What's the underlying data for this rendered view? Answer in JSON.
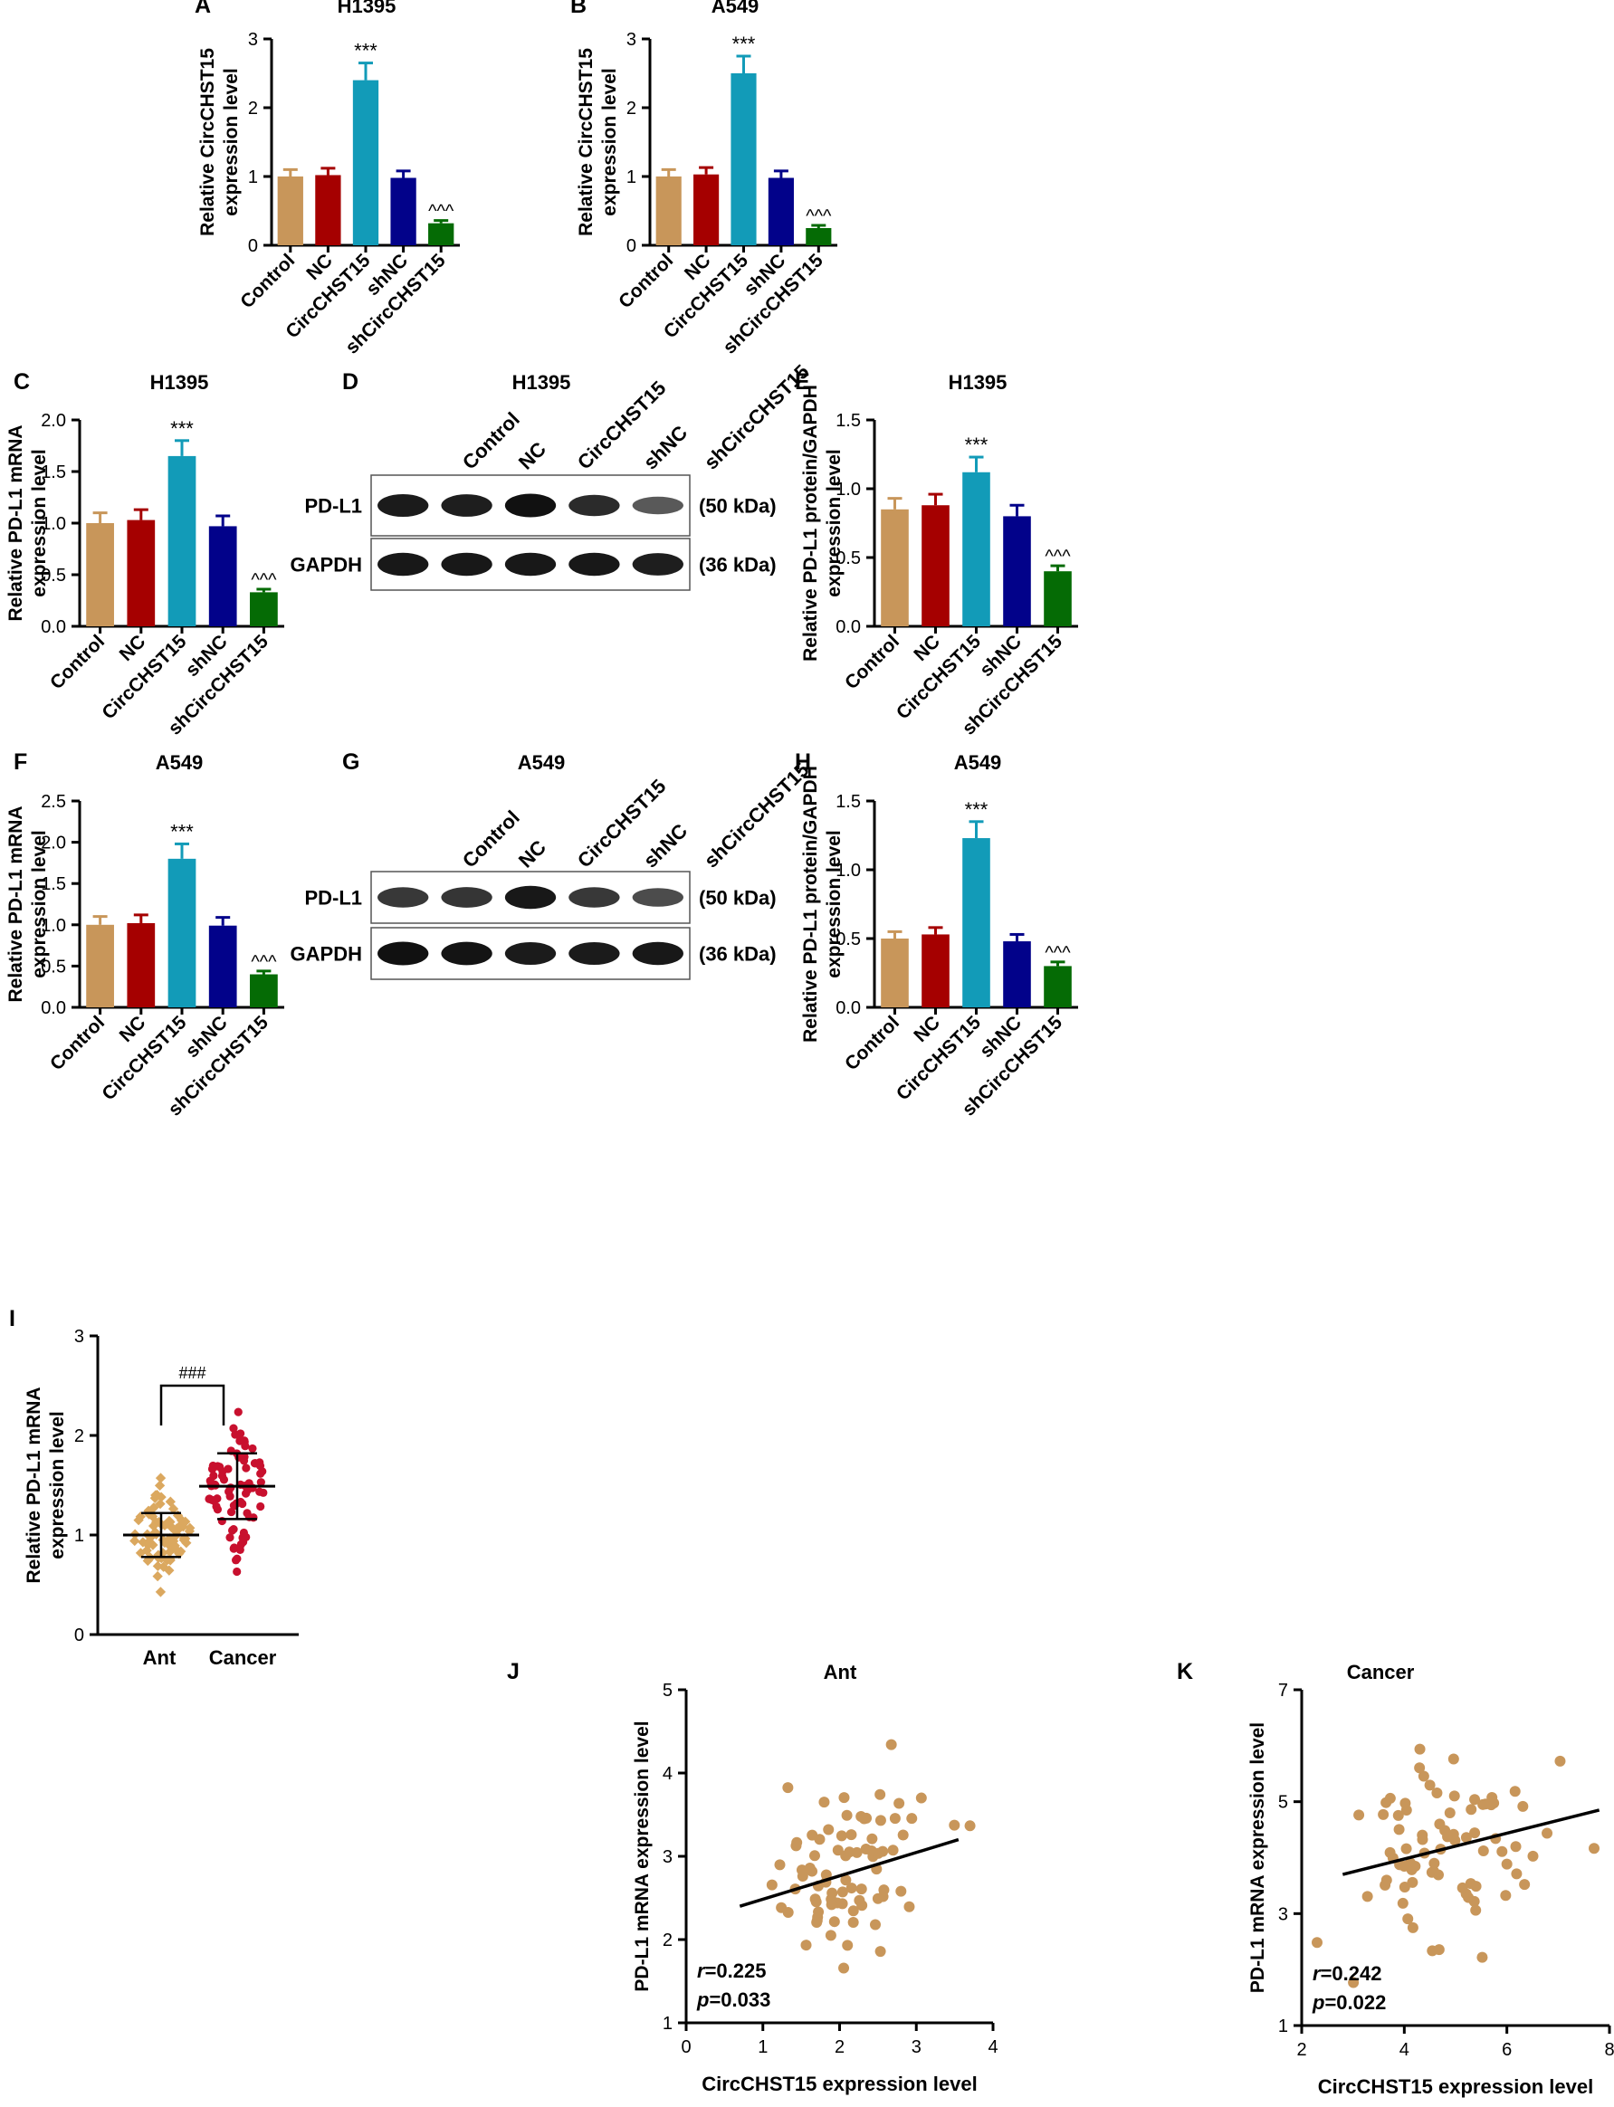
{
  "figure": {
    "colors": {
      "control": "#c8965a",
      "nc": "#a50000",
      "circ": "#129bb8",
      "shnc": "#02028a",
      "shcirc": "#056b05",
      "scatter_ant": "#dba85f",
      "scatter_cancer": "#c8102e",
      "corr_point": "#c8965a",
      "axis": "#000000"
    }
  },
  "chart_data": [
    {
      "id": "A",
      "panel_label": "A",
      "type": "bar",
      "title": "H1395",
      "ylabel": [
        "Relative CircCHST15",
        "expression level"
      ],
      "categories": [
        "Control",
        "NC",
        "CircCHST15",
        "shNC",
        "shCircCHST15"
      ],
      "values": [
        1.0,
        1.02,
        2.4,
        0.98,
        0.32
      ],
      "errors": [
        0.1,
        0.1,
        0.25,
        0.1,
        0.04
      ],
      "annotations": [
        "",
        "",
        "***",
        "",
        "^^^"
      ],
      "ylim": [
        0,
        3
      ],
      "yticks": [
        "0",
        "1",
        "2",
        "3"
      ]
    },
    {
      "id": "B",
      "panel_label": "B",
      "type": "bar",
      "title": "A549",
      "ylabel": [
        "Relative CircCHST15",
        "expression level"
      ],
      "categories": [
        "Control",
        "NC",
        "CircCHST15",
        "shNC",
        "shCircCHST15"
      ],
      "values": [
        1.0,
        1.03,
        2.5,
        0.98,
        0.25
      ],
      "errors": [
        0.1,
        0.1,
        0.25,
        0.1,
        0.04
      ],
      "annotations": [
        "",
        "",
        "***",
        "",
        "^^^"
      ],
      "ylim": [
        0,
        3
      ],
      "yticks": [
        "0",
        "1",
        "2",
        "3"
      ]
    },
    {
      "id": "C",
      "panel_label": "C",
      "type": "bar",
      "title": "H1395",
      "ylabel": [
        "Relative PD-L1 mRNA",
        "expression level"
      ],
      "categories": [
        "Control",
        "NC",
        "CircCHST15",
        "shNC",
        "shCircCHST15"
      ],
      "values": [
        1.0,
        1.03,
        1.65,
        0.97,
        0.33
      ],
      "errors": [
        0.1,
        0.1,
        0.15,
        0.1,
        0.03
      ],
      "annotations": [
        "",
        "",
        "***",
        "",
        "^^^"
      ],
      "ylim": [
        0,
        2.0
      ],
      "yticks": [
        "0.0",
        "0.5",
        "1.0",
        "1.5",
        "2.0"
      ]
    },
    {
      "id": "E",
      "panel_label": "E",
      "type": "bar",
      "title": "H1395",
      "ylabel": [
        "Relative PD-L1 protein/GAPDH",
        "expression level"
      ],
      "categories": [
        "Control",
        "NC",
        "CircCHST15",
        "shNC",
        "shCircCHST15"
      ],
      "values": [
        0.85,
        0.88,
        1.12,
        0.8,
        0.4
      ],
      "errors": [
        0.08,
        0.08,
        0.11,
        0.08,
        0.04
      ],
      "annotations": [
        "",
        "",
        "***",
        "",
        "^^^"
      ],
      "ylim": [
        0,
        1.5
      ],
      "yticks": [
        "0.0",
        "0.5",
        "1.0",
        "1.5"
      ]
    },
    {
      "id": "F",
      "panel_label": "F",
      "type": "bar",
      "title": "A549",
      "ylabel": [
        "Relative PD-L1 mRNA",
        "expression level"
      ],
      "categories": [
        "Control",
        "NC",
        "CircCHST15",
        "shNC",
        "shCircCHST15"
      ],
      "values": [
        1.0,
        1.02,
        1.8,
        0.99,
        0.4
      ],
      "errors": [
        0.1,
        0.1,
        0.18,
        0.1,
        0.04
      ],
      "annotations": [
        "",
        "",
        "***",
        "",
        "^^^"
      ],
      "ylim": [
        0,
        2.5
      ],
      "yticks": [
        "0.0",
        "0.5",
        "1.0",
        "1.5",
        "2.0",
        "2.5"
      ]
    },
    {
      "id": "H",
      "panel_label": "H",
      "type": "bar",
      "title": "A549",
      "ylabel": [
        "Relative PD-L1 protein/GAPDH",
        "expression level"
      ],
      "categories": [
        "Control",
        "NC",
        "CircCHST15",
        "shNC",
        "shCircCHST15"
      ],
      "values": [
        0.5,
        0.53,
        1.23,
        0.48,
        0.3
      ],
      "errors": [
        0.05,
        0.05,
        0.12,
        0.05,
        0.03
      ],
      "annotations": [
        "",
        "",
        "***",
        "",
        "^^^"
      ],
      "ylim": [
        0,
        1.5
      ],
      "yticks": [
        "0.0",
        "0.5",
        "1.0",
        "1.5"
      ]
    },
    {
      "id": "I",
      "panel_label": "I",
      "type": "scatter",
      "subtype": "dot-plot",
      "ylabel": [
        "Relative PD-L1 mRNA",
        "expression level"
      ],
      "categories": [
        "Ant",
        "Cancer"
      ],
      "means": [
        1.0,
        1.49
      ],
      "sds": [
        0.22,
        0.33
      ],
      "significance": "###",
      "ylim": [
        0,
        3
      ],
      "yticks": [
        "0",
        "1",
        "2",
        "3"
      ],
      "n_points": 80,
      "seed": [
        7,
        19
      ]
    },
    {
      "id": "J",
      "panel_label": "J",
      "type": "scatter",
      "title": "Ant",
      "xlabel": "CircCHST15 expression level",
      "ylabel": "PD-L1 mRNA expression level",
      "xlim": [
        0,
        4
      ],
      "ylim": [
        1,
        5
      ],
      "xticks": [
        "0",
        "1",
        "2",
        "3",
        "4"
      ],
      "yticks": [
        "1",
        "2",
        "3",
        "4",
        "5"
      ],
      "r_label": "r",
      "r_value": "=0.225",
      "p_label": "p",
      "p_value": "=0.033",
      "fit_line": {
        "x": [
          0.7,
          3.55
        ],
        "y": [
          2.4,
          3.2
        ]
      },
      "x_center": 2.2,
      "x_spread": 0.55,
      "slope": 0.28,
      "intercept": 2.2,
      "noise": 0.5,
      "n_points": 80,
      "seed": 31
    },
    {
      "id": "K",
      "panel_label": "K",
      "type": "scatter",
      "title": "Cancer",
      "xlabel": "CircCHST15 expression level",
      "ylabel": "PD-L1 mRNA expression level",
      "xlim": [
        2,
        8
      ],
      "ylim": [
        1,
        7
      ],
      "xticks": [
        "2",
        "4",
        "6",
        "8"
      ],
      "yticks": [
        "1",
        "3",
        "5",
        "7"
      ],
      "r_label": "r",
      "r_value": "=0.242",
      "p_label": "p",
      "p_value": "=0.022",
      "fit_line": {
        "x": [
          2.8,
          7.8
        ],
        "y": [
          3.7,
          4.85
        ]
      },
      "x_center": 5.0,
      "x_spread": 1.05,
      "slope": 0.23,
      "intercept": 3.06,
      "noise": 0.75,
      "n_points": 80,
      "seed": 53
    }
  ],
  "blots": [
    {
      "id": "D",
      "panel_label": "D",
      "title": "H1395",
      "lanes": [
        "Control",
        "NC",
        "CircCHST15",
        "shNC",
        "shCircCHST15"
      ],
      "rows": [
        {
          "label": "PD-L1",
          "size": "(50 kDa)",
          "intensity": [
            0.92,
            0.9,
            1.0,
            0.8,
            0.45
          ]
        },
        {
          "label": "GAPDH",
          "size": "(36 kDa)",
          "intensity": [
            0.95,
            0.95,
            0.95,
            0.95,
            0.9
          ]
        }
      ]
    },
    {
      "id": "G",
      "panel_label": "G",
      "title": "A549",
      "lanes": [
        "Control",
        "NC",
        "CircCHST15",
        "shNC",
        "shCircCHST15"
      ],
      "rows": [
        {
          "label": "PD-L1",
          "size": "(50 kDa)",
          "intensity": [
            0.7,
            0.72,
            0.95,
            0.7,
            0.55
          ]
        },
        {
          "label": "GAPDH",
          "size": "(36 kDa)",
          "intensity": [
            1.0,
            0.98,
            0.92,
            0.92,
            0.95
          ]
        }
      ]
    }
  ]
}
